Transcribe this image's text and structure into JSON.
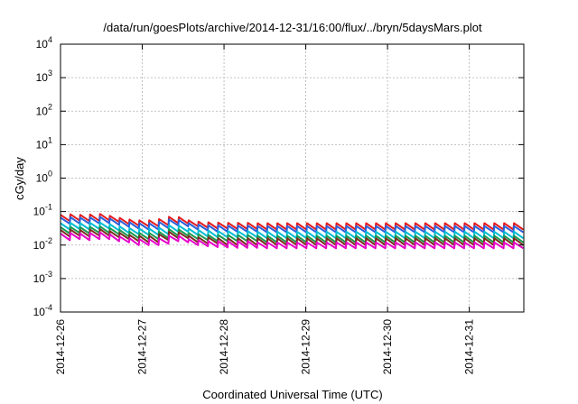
{
  "chart_data": {
    "type": "line",
    "title": "/data/run/goesPlots/archive/2014-12-31/16:00/flux/../bryn/5daysMars.plot",
    "xlabel": "Coordinated Universal Time (UTC)",
    "ylabel": "cGy/day",
    "y_scale": "log",
    "ylim": [
      0.0001,
      10000
    ],
    "y_ticks": [
      {
        "base": "10",
        "exp": "-4",
        "value": 0.0001
      },
      {
        "base": "10",
        "exp": "-3",
        "value": 0.001
      },
      {
        "base": "10",
        "exp": "-2",
        "value": 0.01
      },
      {
        "base": "10",
        "exp": "-1",
        "value": 0.1
      },
      {
        "base": "10",
        "exp": "0",
        "value": 1
      },
      {
        "base": "10",
        "exp": "1",
        "value": 10
      },
      {
        "base": "10",
        "exp": "2",
        "value": 100
      },
      {
        "base": "10",
        "exp": "3",
        "value": 1000
      },
      {
        "base": "10",
        "exp": "4",
        "value": 10000
      }
    ],
    "xlim": [
      "2014-12-26T00:00",
      "2014-12-31T16:00"
    ],
    "x_ticks": [
      "2014-12-26",
      "2014-12-27",
      "2014-12-28",
      "2014-12-29",
      "2014-12-30",
      "2014-12-31"
    ],
    "grid": true,
    "legend": "none",
    "series": [
      {
        "color": "#e41a1c",
        "peak_values": [
          0.08,
          0.083,
          0.08,
          0.082,
          0.085,
          0.075,
          0.065,
          0.058,
          0.055,
          0.055,
          0.06,
          0.07,
          0.068,
          0.055,
          0.05,
          0.048,
          0.047,
          0.046,
          0.046,
          0.046,
          0.045,
          0.045,
          0.045,
          0.045,
          0.045,
          0.045,
          0.045,
          0.045,
          0.045,
          0.045,
          0.045,
          0.045,
          0.045,
          0.045,
          0.045,
          0.045,
          0.045,
          0.045,
          0.045,
          0.045,
          0.045,
          0.045,
          0.045,
          0.045,
          0.045,
          0.045,
          0.045
        ],
        "trough_values": [
          0.052,
          0.054,
          0.052,
          0.053,
          0.055,
          0.049,
          0.042,
          0.038,
          0.036,
          0.036,
          0.039,
          0.045,
          0.044,
          0.036,
          0.033,
          0.031,
          0.031,
          0.03,
          0.03,
          0.03,
          0.029,
          0.029,
          0.029,
          0.029,
          0.029,
          0.029,
          0.029,
          0.029,
          0.029,
          0.029,
          0.029,
          0.029,
          0.029,
          0.029,
          0.029,
          0.029,
          0.029,
          0.029,
          0.029,
          0.029,
          0.029,
          0.029,
          0.029,
          0.029,
          0.029,
          0.029,
          0.029
        ]
      },
      {
        "color": "#2b5fd9",
        "peak_values": [
          0.066,
          0.068,
          0.066,
          0.067,
          0.07,
          0.062,
          0.054,
          0.048,
          0.045,
          0.045,
          0.049,
          0.058,
          0.056,
          0.045,
          0.041,
          0.039,
          0.039,
          0.038,
          0.038,
          0.038,
          0.037,
          0.037,
          0.037,
          0.037,
          0.037,
          0.037,
          0.037,
          0.037,
          0.037,
          0.037,
          0.037,
          0.037,
          0.037,
          0.037,
          0.037,
          0.037,
          0.037,
          0.037,
          0.037,
          0.037,
          0.037,
          0.037,
          0.037,
          0.037,
          0.037,
          0.037,
          0.037
        ],
        "trough_values": [
          0.043,
          0.044,
          0.043,
          0.044,
          0.045,
          0.04,
          0.035,
          0.031,
          0.029,
          0.029,
          0.032,
          0.038,
          0.036,
          0.029,
          0.027,
          0.025,
          0.025,
          0.025,
          0.025,
          0.025,
          0.024,
          0.024,
          0.024,
          0.024,
          0.024,
          0.024,
          0.024,
          0.024,
          0.024,
          0.024,
          0.024,
          0.024,
          0.024,
          0.024,
          0.024,
          0.024,
          0.024,
          0.024,
          0.024,
          0.024,
          0.024,
          0.024,
          0.024,
          0.024,
          0.024,
          0.024,
          0.024
        ]
      },
      {
        "color": "#00bcd4",
        "peak_values": [
          0.045,
          0.046,
          0.045,
          0.046,
          0.047,
          0.042,
          0.036,
          0.032,
          0.031,
          0.031,
          0.033,
          0.039,
          0.038,
          0.031,
          0.028,
          0.027,
          0.026,
          0.026,
          0.026,
          0.026,
          0.025,
          0.025,
          0.025,
          0.025,
          0.025,
          0.025,
          0.025,
          0.025,
          0.025,
          0.025,
          0.025,
          0.025,
          0.025,
          0.025,
          0.025,
          0.025,
          0.025,
          0.025,
          0.025,
          0.025,
          0.025,
          0.025,
          0.025,
          0.025,
          0.025,
          0.025,
          0.025
        ],
        "trough_values": [
          0.029,
          0.03,
          0.029,
          0.03,
          0.031,
          0.027,
          0.023,
          0.021,
          0.02,
          0.02,
          0.021,
          0.025,
          0.025,
          0.02,
          0.018,
          0.017,
          0.017,
          0.017,
          0.017,
          0.017,
          0.016,
          0.016,
          0.016,
          0.016,
          0.016,
          0.016,
          0.016,
          0.016,
          0.016,
          0.016,
          0.016,
          0.016,
          0.016,
          0.016,
          0.016,
          0.016,
          0.016,
          0.016,
          0.016,
          0.016,
          0.016,
          0.016,
          0.016,
          0.016,
          0.016,
          0.016,
          0.016
        ]
      },
      {
        "color": "#1a9850",
        "peak_values": [
          0.034,
          0.035,
          0.034,
          0.035,
          0.036,
          0.032,
          0.028,
          0.025,
          0.023,
          0.023,
          0.025,
          0.03,
          0.029,
          0.023,
          0.021,
          0.02,
          0.02,
          0.02,
          0.02,
          0.02,
          0.019,
          0.019,
          0.019,
          0.019,
          0.019,
          0.019,
          0.019,
          0.019,
          0.019,
          0.019,
          0.019,
          0.019,
          0.019,
          0.019,
          0.019,
          0.019,
          0.019,
          0.019,
          0.019,
          0.019,
          0.019,
          0.019,
          0.019,
          0.019,
          0.019,
          0.019,
          0.019
        ],
        "trough_values": [
          0.022,
          0.023,
          0.022,
          0.023,
          0.023,
          0.021,
          0.018,
          0.016,
          0.015,
          0.015,
          0.016,
          0.019,
          0.019,
          0.015,
          0.014,
          0.013,
          0.013,
          0.013,
          0.013,
          0.013,
          0.012,
          0.012,
          0.012,
          0.012,
          0.012,
          0.012,
          0.012,
          0.012,
          0.012,
          0.012,
          0.012,
          0.012,
          0.012,
          0.012,
          0.012,
          0.012,
          0.012,
          0.012,
          0.012,
          0.012,
          0.012,
          0.012,
          0.012,
          0.012,
          0.012,
          0.012,
          0.012
        ]
      },
      {
        "color": "#7a2e1e",
        "peak_values": [
          0.028,
          0.029,
          0.028,
          0.029,
          0.03,
          0.026,
          0.023,
          0.02,
          0.019,
          0.019,
          0.021,
          0.025,
          0.024,
          0.019,
          0.017,
          0.017,
          0.016,
          0.016,
          0.016,
          0.016,
          0.016,
          0.016,
          0.016,
          0.016,
          0.016,
          0.016,
          0.016,
          0.016,
          0.016,
          0.016,
          0.016,
          0.016,
          0.016,
          0.016,
          0.016,
          0.016,
          0.016,
          0.016,
          0.016,
          0.016,
          0.016,
          0.016,
          0.016,
          0.016,
          0.016,
          0.016,
          0.016
        ],
        "trough_values": [
          0.018,
          0.019,
          0.018,
          0.019,
          0.019,
          0.017,
          0.015,
          0.013,
          0.012,
          0.012,
          0.014,
          0.016,
          0.016,
          0.012,
          0.011,
          0.011,
          0.01,
          0.01,
          0.01,
          0.01,
          0.01,
          0.01,
          0.01,
          0.01,
          0.01,
          0.01,
          0.01,
          0.01,
          0.01,
          0.01,
          0.01,
          0.01,
          0.01,
          0.01,
          0.01,
          0.01,
          0.01,
          0.01,
          0.01,
          0.01,
          0.01,
          0.01,
          0.01,
          0.01,
          0.01,
          0.01,
          0.01
        ]
      },
      {
        "color": "#e600c8",
        "peak_values": [
          0.022,
          0.023,
          0.022,
          0.023,
          0.024,
          0.021,
          0.018,
          0.016,
          0.015,
          0.015,
          0.016,
          0.019,
          0.019,
          0.015,
          0.014,
          0.013,
          0.013,
          0.013,
          0.013,
          0.013,
          0.012,
          0.012,
          0.012,
          0.012,
          0.012,
          0.012,
          0.012,
          0.012,
          0.012,
          0.012,
          0.012,
          0.012,
          0.012,
          0.012,
          0.012,
          0.012,
          0.012,
          0.012,
          0.012,
          0.012,
          0.012,
          0.012,
          0.012,
          0.012,
          0.012,
          0.012,
          0.012
        ],
        "trough_values": [
          0.014,
          0.015,
          0.014,
          0.015,
          0.015,
          0.013,
          0.012,
          0.01,
          0.01,
          0.01,
          0.011,
          0.013,
          0.012,
          0.01,
          0.0092,
          0.0087,
          0.0085,
          0.0083,
          0.0083,
          0.0083,
          0.008,
          0.008,
          0.008,
          0.008,
          0.008,
          0.008,
          0.008,
          0.008,
          0.008,
          0.008,
          0.008,
          0.008,
          0.008,
          0.008,
          0.008,
          0.008,
          0.008,
          0.008,
          0.008,
          0.008,
          0.008,
          0.008,
          0.008,
          0.008,
          0.008,
          0.008,
          0.008
        ]
      }
    ]
  }
}
